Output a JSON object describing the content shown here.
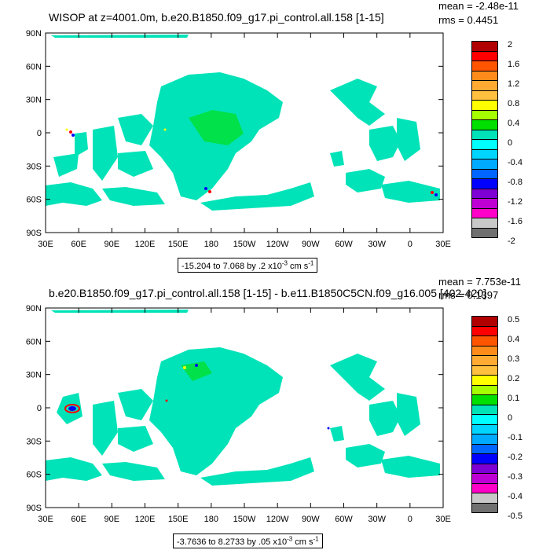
{
  "panels": [
    {
      "title": "WISOP at z=4001.0m, b.e20.B1850.f09_g17.pi_control.all.158 [1-15]",
      "mean": "mean = -2.48e-11",
      "rms": "rms = 0.4451",
      "contour_info": "-15.204 to 7.068 by .2 x10-3 cm s-1",
      "lat_labels": [
        "90N",
        "60N",
        "30N",
        "0",
        "30S",
        "60S",
        "90S"
      ],
      "lon_labels": [
        "30E",
        "60E",
        "90E",
        "120E",
        "150E",
        "180",
        "150W",
        "120W",
        "90W",
        "60W",
        "30W",
        "0",
        "30E"
      ],
      "colorbar_labels": [
        "2",
        "1.6",
        "1.2",
        "0.8",
        "0.4",
        "0",
        "-0.4",
        "-0.8",
        "-1.2",
        "-1.6",
        "-2"
      ]
    },
    {
      "title": "b.e20.B1850.f09_g17.pi_control.all.158 [1-15] - b.e11.B1850C5CN.f09_g16.005 [402-420]",
      "mean": "mean = 7.753e-11",
      "rms": "rms = 0.1397",
      "contour_info": "-3.7636 to 8.2733 by .05 x10-3 cm s-1",
      "lat_labels": [
        "90N",
        "60N",
        "30N",
        "0",
        "30S",
        "60S",
        "90S"
      ],
      "lon_labels": [
        "30E",
        "60E",
        "90E",
        "120E",
        "150E",
        "180",
        "150W",
        "120W",
        "90W",
        "60W",
        "30W",
        "0",
        "30E"
      ],
      "colorbar_labels": [
        "0.5",
        "0.4",
        "0.3",
        "0.2",
        "0.1",
        "0",
        "-0.1",
        "-0.2",
        "-0.3",
        "-0.4",
        "-0.5"
      ]
    }
  ],
  "colorbar_colors": [
    "#b00000",
    "#ff0000",
    "#ff5500",
    "#ff8c1a",
    "#ffaa33",
    "#ffc040",
    "#ffff00",
    "#a6ff00",
    "#00e000",
    "#00e3b8",
    "#00ffff",
    "#00d5ff",
    "#00aaff",
    "#0066ff",
    "#0000ff",
    "#7f00d4",
    "#bf00d4",
    "#ff00c8",
    "#c8c8c8",
    "#707070"
  ],
  "field_colors": {
    "base": "#00e3b8",
    "accent": "#00e000",
    "pos": "#ffff00",
    "neg": "#0000ff",
    "high": "#ff0000"
  }
}
